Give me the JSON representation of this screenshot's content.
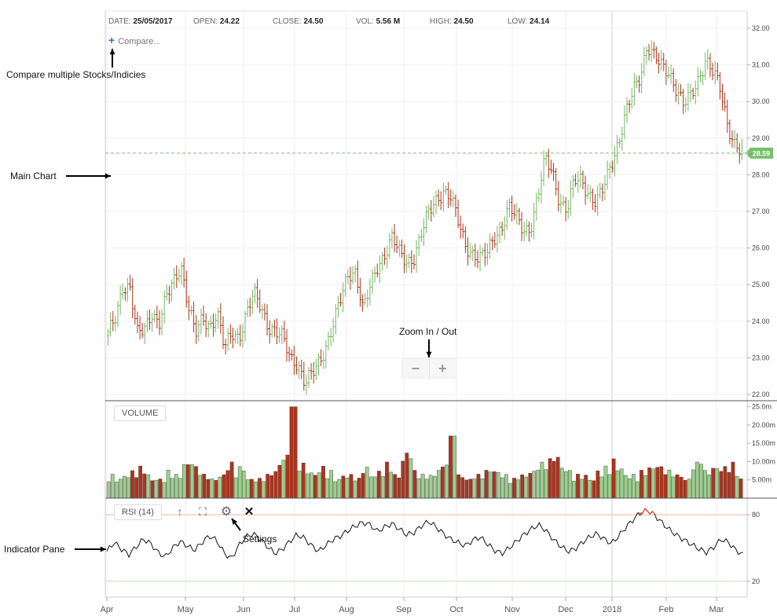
{
  "stats": [
    {
      "label": "DATE:",
      "value": "25/05/2017"
    },
    {
      "label": "OPEN:",
      "value": "24.22"
    },
    {
      "label": "CLOSE:",
      "value": "24.50"
    },
    {
      "label": "VOL:",
      "value": "5.56 M"
    },
    {
      "label": "HIGH:",
      "value": "24.50"
    },
    {
      "label": "LOW:",
      "value": "24.14"
    }
  ],
  "compare_label": "Compare...",
  "volume_label": "VOLUME",
  "rsi_label": "RSI (14)",
  "icons": [
    "arrow-up-icon",
    "fullscreen-icon",
    "gear-icon",
    "close-icon"
  ],
  "annotations": {
    "compare": "Compare multiple Stocks/Indicies",
    "main_chart": "Main Chart",
    "zoom": "Zoom In / Out",
    "settings": "Settings",
    "indicator": "Indicator Pane"
  },
  "colors": {
    "up": "#72b862",
    "down": "#b0331b",
    "current_price": "#74c06a",
    "rsi_line": "#111111",
    "rsi_overbought": "#d9472b"
  },
  "chart_data": {
    "type": "ohlc",
    "y_ticks": [
      "22.00",
      "23.00",
      "24.00",
      "25.00",
      "26.00",
      "27.00",
      "28.00",
      "29.00",
      "30.00",
      "31.00",
      "32.00"
    ],
    "ylim": [
      21.9,
      32.3
    ],
    "x_labels": [
      "Apr",
      "May",
      "Jun",
      "Jul",
      "Aug",
      "Sep",
      "Oct",
      "Nov",
      "Dec",
      "2018",
      "Feb",
      "Mar"
    ],
    "current_price": "28.59",
    "close": [
      23.6,
      24.1,
      25.0,
      24.9,
      23.6,
      23.8,
      24.3,
      23.9,
      24.6,
      25.1,
      25.6,
      24.4,
      23.6,
      24.1,
      23.9,
      24.2,
      23.2,
      23.7,
      23.6,
      24.2,
      24.7,
      24.4,
      23.9,
      23.7,
      23.5,
      23.0,
      22.9,
      22.3,
      22.5,
      22.9,
      23.4,
      24.0,
      24.6,
      25.3,
      25.4,
      24.3,
      24.9,
      25.5,
      25.9,
      26.3,
      25.8,
      25.6,
      25.8,
      26.4,
      26.9,
      27.3,
      27.6,
      27.4,
      26.7,
      26.1,
      25.9,
      25.7,
      25.8,
      26.3,
      26.6,
      27.1,
      26.8,
      26.5,
      26.6,
      27.4,
      28.4,
      28.1,
      27.3,
      27.0,
      27.8,
      27.9,
      27.5,
      27.2,
      27.6,
      28.3,
      28.9,
      29.6,
      30.2,
      30.7,
      31.6,
      31.2,
      30.9,
      30.8,
      30.4,
      29.9,
      30.1,
      30.6,
      31.2,
      30.8,
      30.3,
      29.4,
      28.9,
      28.6
    ],
    "volume_ticks": [
      "5.00m",
      "10.00m",
      "15.00m",
      "20.00m",
      "25.0m"
    ],
    "volume": [
      6,
      5,
      6,
      7,
      8,
      6,
      5,
      5,
      7,
      6,
      9,
      10,
      8,
      6,
      5,
      6,
      9,
      7,
      8,
      5,
      5,
      6,
      7,
      9,
      11,
      25,
      9,
      7,
      6,
      8,
      7,
      5,
      6,
      6,
      5,
      8,
      6,
      7,
      9,
      6,
      10,
      12,
      7,
      6,
      6,
      8,
      11,
      17,
      6,
      5,
      6,
      7,
      8,
      7,
      6,
      5,
      6,
      6,
      7,
      9,
      10,
      11,
      8,
      7,
      6,
      6,
      5,
      7,
      8,
      10,
      8,
      6,
      6,
      7,
      8,
      9,
      8,
      7,
      6,
      5,
      9,
      12,
      7,
      8,
      8,
      9,
      7,
      5
    ],
    "rsi_ticks": [
      "20",
      "80"
    ],
    "rsi": [
      47,
      55,
      49,
      44,
      51,
      58,
      54,
      46,
      42,
      50,
      56,
      52,
      48,
      55,
      61,
      57,
      46,
      40,
      52,
      60,
      63,
      58,
      51,
      45,
      49,
      56,
      62,
      59,
      52,
      47,
      53,
      58,
      61,
      66,
      70,
      73,
      71,
      65,
      69,
      72,
      67,
      62,
      64,
      70,
      74,
      69,
      63,
      58,
      55,
      52,
      57,
      60,
      54,
      48,
      45,
      50,
      56,
      62,
      67,
      71,
      66,
      58,
      52,
      47,
      49,
      55,
      60,
      63,
      58,
      54,
      61,
      69,
      76,
      82,
      84,
      79,
      72,
      66,
      61,
      57,
      53,
      49,
      46,
      51,
      58,
      55,
      48,
      44
    ]
  }
}
